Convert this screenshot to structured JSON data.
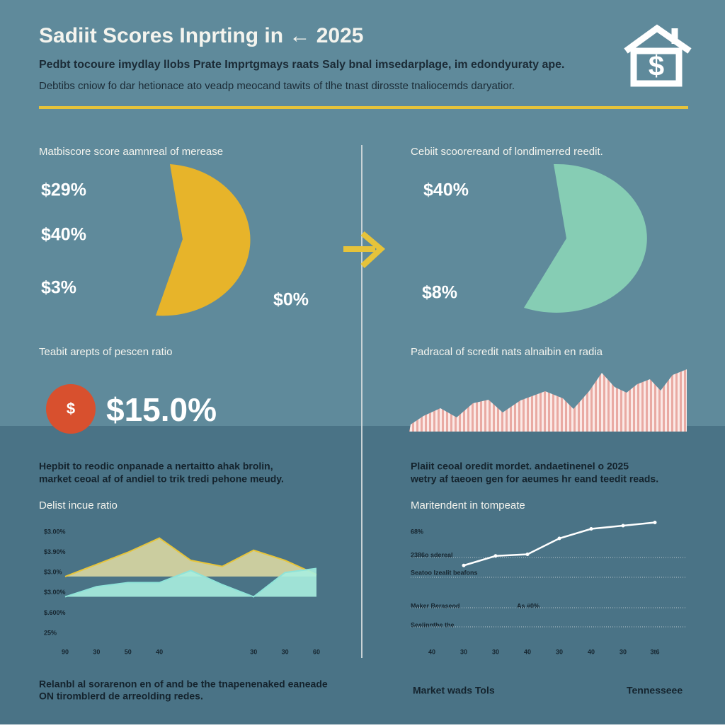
{
  "header": {
    "title": "Sadiit Scores Inprting in ← 2025",
    "subtitle": "Pedbt tocoure imydlay llobs Prate Imprtgmays raats Saly bnal imsedarplage, im edondyuraty ape.",
    "description": "Debtibs cniow fo dar hetionace ato veadp meocand tawits of tlhe tnast dirosste tnaliocemds daryatior."
  },
  "left_panel": {
    "heading": "Matbiscore score aamnreal of merease",
    "labels": [
      "$29%",
      "$40%",
      "$3%",
      "$0%"
    ],
    "ratio_heading": "Teabit arepts of pescen ratio",
    "icon": "$",
    "ratio": "$15.0%",
    "notes": [
      "Hepbit to reodic onpanade a nertaitto ahak brolin,",
      "market ceoal af of andiel to trik tredi pehone meudy."
    ],
    "chart_heading": "Delist incue ratio",
    "footer": [
      "Relanbl al sorarenon en of and be the tnapenenaked eaneade",
      "ON tiromblerd de arreolding redes."
    ]
  },
  "right_panel": {
    "heading": "Cebiit scoorereand of londimerred reedit.",
    "labels": [
      "$40%",
      "$8%"
    ],
    "wave_heading": "Padracal of scredit nats alnaibin en radia",
    "notes": [
      "Plaiit ceoal oredit mordet. andaetinenel o 2025",
      "wetry af taeoen gen for aeumes hr eand teedit reads."
    ],
    "chart_heading": "Maritendent in tompeate",
    "footer": [
      "Market wads Tols",
      "Tennesseee"
    ]
  },
  "chart_data": [
    {
      "type": "area",
      "categories": [
        "90",
        "30",
        "50",
        "40",
        null,
        null,
        "30",
        "30",
        "60"
      ],
      "ylim": [
        0,
        6
      ],
      "yticks": [
        {
          "value": 6,
          "label": "$3.00%"
        },
        {
          "value": 5,
          "label": "$3.90%"
        },
        {
          "value": 4,
          "label": "$3.0%"
        },
        {
          "value": 3,
          "label": "$3.00%"
        },
        {
          "value": 2,
          "label": "$.600%"
        },
        {
          "value": 1,
          "label": "25%"
        }
      ],
      "series": [
        {
          "color": "#e7c53a",
          "fill": "#d9d7a2",
          "values": [
            3.8,
            4.4,
            5.0,
            5.7,
            4.6,
            4.3,
            5.1,
            4.6,
            3.9
          ]
        },
        {
          "color": "#8fe3d8",
          "fill": "#a9eedf",
          "values": [
            2.8,
            3.3,
            3.5,
            3.5,
            4.1,
            3.4,
            2.8,
            4.0,
            4.2
          ]
        }
      ]
    },
    {
      "type": "line",
      "categories": [
        "40",
        "30",
        "30",
        "40",
        "30",
        "40",
        "30",
        "3t6"
      ],
      "ylim": [
        0,
        100
      ],
      "yticks": [
        {
          "value": 68,
          "label": "68%"
        }
      ],
      "annotations": [
        "2386o sdereal",
        "Seatoo Izealit beafons",
        "Maker Beraseod",
        "As #0%",
        "Sealinnthe the"
      ],
      "series": [
        {
          "color": "#ffffff",
          "values": [
            null,
            47,
            53,
            54,
            64,
            70,
            72,
            74
          ]
        }
      ]
    }
  ]
}
